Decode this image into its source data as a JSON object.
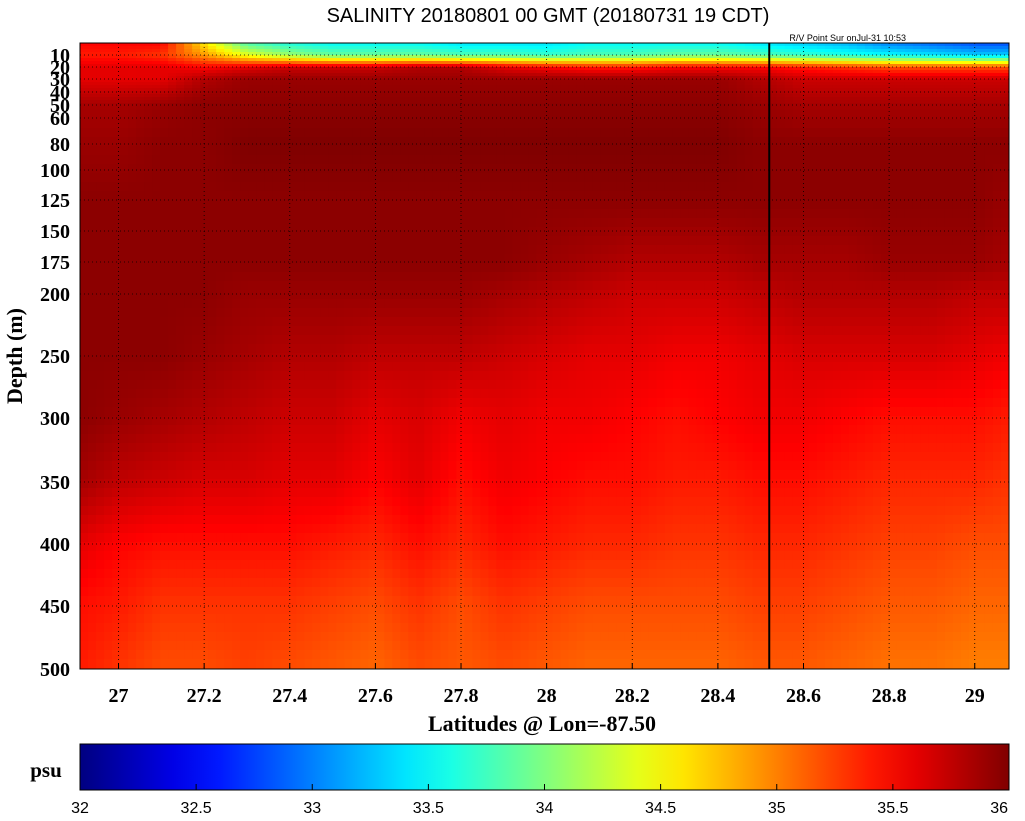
{
  "chart_data": {
    "type": "heatmap",
    "title": "SALINITY 20180801 00 GMT (20180731 19 CDT)",
    "annotation": "R/V Point Sur onJul-31 10:53",
    "xlabel": "Latitudes @ Lon=-87.50",
    "ylabel": "Depth (m)",
    "xlim": [
      26.91,
      29.08
    ],
    "ylim_depth": [
      0,
      500
    ],
    "x_ticks": [
      27,
      27.2,
      27.4,
      27.6,
      27.8,
      28,
      28.2,
      28.4,
      28.6,
      28.8,
      29
    ],
    "x_tick_labels": [
      "27",
      "27.2",
      "27.4",
      "27.6",
      "27.8",
      "28",
      "28.2",
      "28.4",
      "28.6",
      "28.8",
      "29"
    ],
    "y_ticks": [
      10,
      20,
      30,
      40,
      50,
      60,
      80,
      100,
      125,
      150,
      175,
      200,
      250,
      300,
      350,
      400,
      450,
      500
    ],
    "y_tick_labels": [
      "10",
      "20",
      "30",
      "40",
      "50",
      "60",
      "80",
      "100",
      "125",
      "150",
      "175",
      "200",
      "250",
      "300",
      "350",
      "400",
      "450",
      "500"
    ],
    "grid": true,
    "ship_track_latitude": 28.52,
    "latitudes": [
      26.91,
      27.0,
      27.1,
      27.2,
      27.3,
      27.4,
      27.5,
      27.6,
      27.7,
      27.8,
      27.9,
      28.0,
      28.1,
      28.2,
      28.3,
      28.4,
      28.5,
      28.6,
      28.7,
      28.8,
      28.9,
      29.0,
      29.08
    ],
    "depths": [
      0,
      10,
      20,
      30,
      50,
      80,
      125,
      175,
      200,
      250,
      300,
      350,
      400,
      450,
      500
    ],
    "salinity": [
      [
        35.5,
        35.5,
        35.5,
        34.6,
        33.8,
        33.6,
        33.5,
        33.5,
        33.5,
        33.4,
        33.4,
        33.4,
        33.5,
        33.5,
        33.5,
        33.5,
        33.4,
        33.3,
        33.2,
        33.0,
        32.9,
        32.8,
        32.8
      ],
      [
        35.4,
        35.4,
        35.3,
        34.9,
        34.4,
        34.1,
        33.9,
        33.9,
        33.9,
        33.8,
        33.8,
        33.7,
        33.8,
        33.8,
        33.9,
        33.9,
        33.8,
        33.7,
        33.6,
        33.5,
        33.4,
        33.3,
        33.3
      ],
      [
        35.6,
        35.6,
        35.6,
        35.5,
        35.6,
        35.7,
        35.7,
        35.7,
        35.8,
        35.8,
        35.6,
        35.5,
        35.4,
        35.4,
        35.5,
        35.5,
        35.5,
        35.4,
        35.3,
        35.2,
        35.2,
        35.2,
        35.2
      ],
      [
        35.6,
        35.6,
        35.6,
        35.8,
        35.9,
        35.9,
        35.9,
        35.9,
        35.9,
        35.9,
        35.9,
        35.9,
        35.9,
        35.9,
        35.9,
        35.9,
        35.8,
        35.7,
        35.7,
        35.7,
        35.7,
        35.7,
        35.7
      ],
      [
        35.85,
        35.85,
        35.9,
        35.95,
        35.95,
        35.95,
        35.95,
        35.95,
        35.95,
        35.95,
        35.95,
        35.95,
        35.95,
        35.95,
        35.95,
        35.95,
        35.9,
        35.85,
        35.85,
        35.85,
        35.85,
        35.85,
        35.85
      ],
      [
        35.9,
        35.9,
        35.95,
        35.95,
        36.0,
        36.0,
        36.0,
        36.0,
        36.0,
        36.0,
        36.0,
        36.0,
        36.0,
        36.0,
        36.0,
        36.0,
        35.95,
        35.95,
        35.95,
        35.95,
        35.95,
        35.95,
        35.95
      ],
      [
        35.95,
        35.95,
        35.95,
        35.95,
        35.95,
        35.95,
        35.95,
        35.95,
        35.95,
        35.95,
        35.95,
        35.95,
        35.95,
        35.95,
        35.95,
        35.95,
        35.95,
        35.95,
        35.95,
        35.95,
        35.95,
        35.95,
        35.9
      ],
      [
        35.95,
        35.95,
        35.95,
        35.95,
        35.95,
        35.95,
        35.95,
        35.95,
        35.95,
        35.95,
        35.95,
        35.9,
        35.85,
        35.8,
        35.8,
        35.8,
        35.85,
        35.85,
        35.85,
        35.9,
        35.9,
        35.9,
        35.85
      ],
      [
        35.95,
        35.95,
        35.95,
        35.95,
        35.9,
        35.9,
        35.9,
        35.9,
        35.9,
        35.9,
        35.85,
        35.8,
        35.75,
        35.7,
        35.7,
        35.7,
        35.75,
        35.8,
        35.8,
        35.8,
        35.8,
        35.75,
        35.75
      ],
      [
        35.95,
        35.95,
        35.95,
        35.9,
        35.85,
        35.8,
        35.8,
        35.75,
        35.75,
        35.75,
        35.7,
        35.65,
        35.6,
        35.6,
        35.55,
        35.55,
        35.6,
        35.65,
        35.65,
        35.65,
        35.65,
        35.6,
        35.55
      ],
      [
        35.95,
        35.9,
        35.85,
        35.8,
        35.75,
        35.7,
        35.7,
        35.6,
        35.65,
        35.55,
        35.6,
        35.55,
        35.55,
        35.5,
        35.45,
        35.5,
        35.55,
        35.55,
        35.5,
        35.45,
        35.45,
        35.45,
        35.4
      ],
      [
        35.85,
        35.75,
        35.7,
        35.65,
        35.65,
        35.6,
        35.6,
        35.5,
        35.6,
        35.45,
        35.55,
        35.5,
        35.45,
        35.45,
        35.4,
        35.4,
        35.45,
        35.45,
        35.4,
        35.35,
        35.35,
        35.35,
        35.3
      ],
      [
        35.6,
        35.5,
        35.45,
        35.45,
        35.45,
        35.45,
        35.4,
        35.35,
        35.45,
        35.35,
        35.45,
        35.4,
        35.35,
        35.35,
        35.3,
        35.3,
        35.35,
        35.35,
        35.3,
        35.25,
        35.25,
        35.2,
        35.2
      ],
      [
        35.45,
        35.4,
        35.3,
        35.3,
        35.3,
        35.3,
        35.25,
        35.2,
        35.3,
        35.2,
        35.3,
        35.25,
        35.2,
        35.2,
        35.2,
        35.2,
        35.25,
        35.25,
        35.2,
        35.15,
        35.15,
        35.1,
        35.1
      ],
      [
        35.4,
        35.3,
        35.2,
        35.2,
        35.25,
        35.2,
        35.15,
        35.1,
        35.2,
        35.15,
        35.2,
        35.15,
        35.1,
        35.1,
        35.1,
        35.1,
        35.15,
        35.15,
        35.1,
        35.05,
        35.05,
        35.0,
        35.0
      ]
    ],
    "colorbar": {
      "unit": "psu",
      "range": [
        32,
        36
      ],
      "ticks": [
        32,
        32.5,
        33,
        33.5,
        34,
        34.5,
        35,
        35.5,
        36
      ],
      "tick_labels": [
        "32",
        "32.5",
        "33",
        "33.5",
        "34",
        "34.5",
        "35",
        "35.5",
        "36"
      ],
      "colormap": "jet"
    }
  }
}
